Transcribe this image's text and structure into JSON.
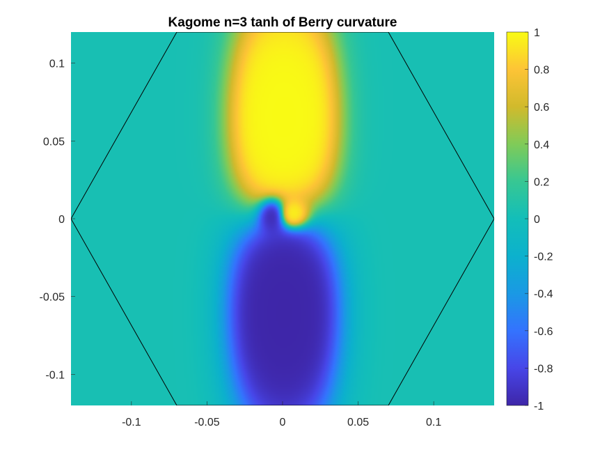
{
  "chart_data": {
    "type": "heatmap",
    "title": "Kagome n=3 tanh of Berry curvature",
    "xlabel": "",
    "ylabel": "",
    "xlim": [
      -0.14,
      0.14
    ],
    "ylim": [
      -0.12,
      0.12
    ],
    "x_ticks": [
      -0.1,
      -0.05,
      0,
      0.05,
      0.1
    ],
    "x_tick_labels": [
      "-0.1",
      "-0.05",
      "0",
      "0.05",
      "0.1"
    ],
    "y_ticks": [
      0.1,
      0.05,
      0,
      -0.05,
      -0.1
    ],
    "y_tick_labels": [
      "0.1",
      "0.05",
      "0",
      "-0.05",
      "-0.1"
    ],
    "colorbar": {
      "range": [
        -1,
        1
      ],
      "ticks": [
        1,
        0.8,
        0.6,
        0.4,
        0.2,
        0,
        -0.2,
        -0.4,
        -0.6,
        -0.8,
        -1
      ],
      "tick_labels": [
        "1",
        "0.8",
        "0.6",
        "0.4",
        "0.2",
        "0",
        "-0.2",
        "-0.4",
        "-0.6",
        "-0.8",
        "-1"
      ],
      "colormap": "parula"
    },
    "brillouin_zone": {
      "vertices": [
        [
          -0.07,
          0.12
        ],
        [
          0.07,
          0.12
        ],
        [
          0.14,
          0
        ],
        [
          0.07,
          -0.12
        ],
        [
          -0.07,
          -0.12
        ],
        [
          -0.14,
          0
        ]
      ],
      "color": "#000000"
    },
    "field": {
      "background_value": 0.03,
      "positive_lobes": [
        {
          "cx": -0.011,
          "cy": 0.062,
          "sx": 0.015,
          "sy": 0.045,
          "amp": 2.4
        },
        {
          "cx": 0.013,
          "cy": 0.062,
          "sx": 0.015,
          "sy": 0.045,
          "amp": 2.4
        },
        {
          "cx": 0.006,
          "cy": 0.002,
          "sx": 0.007,
          "sy": 0.006,
          "amp": 2.0
        }
      ],
      "negative_lobes": [
        {
          "cx": -0.01,
          "cy": -0.058,
          "sx": 0.016,
          "sy": 0.045,
          "amp": 2.4
        },
        {
          "cx": 0.012,
          "cy": -0.058,
          "sx": 0.016,
          "sy": 0.045,
          "amp": 2.4
        },
        {
          "cx": -0.006,
          "cy": 0.003,
          "sx": 0.006,
          "sy": 0.007,
          "amp": 2.0
        }
      ]
    }
  }
}
